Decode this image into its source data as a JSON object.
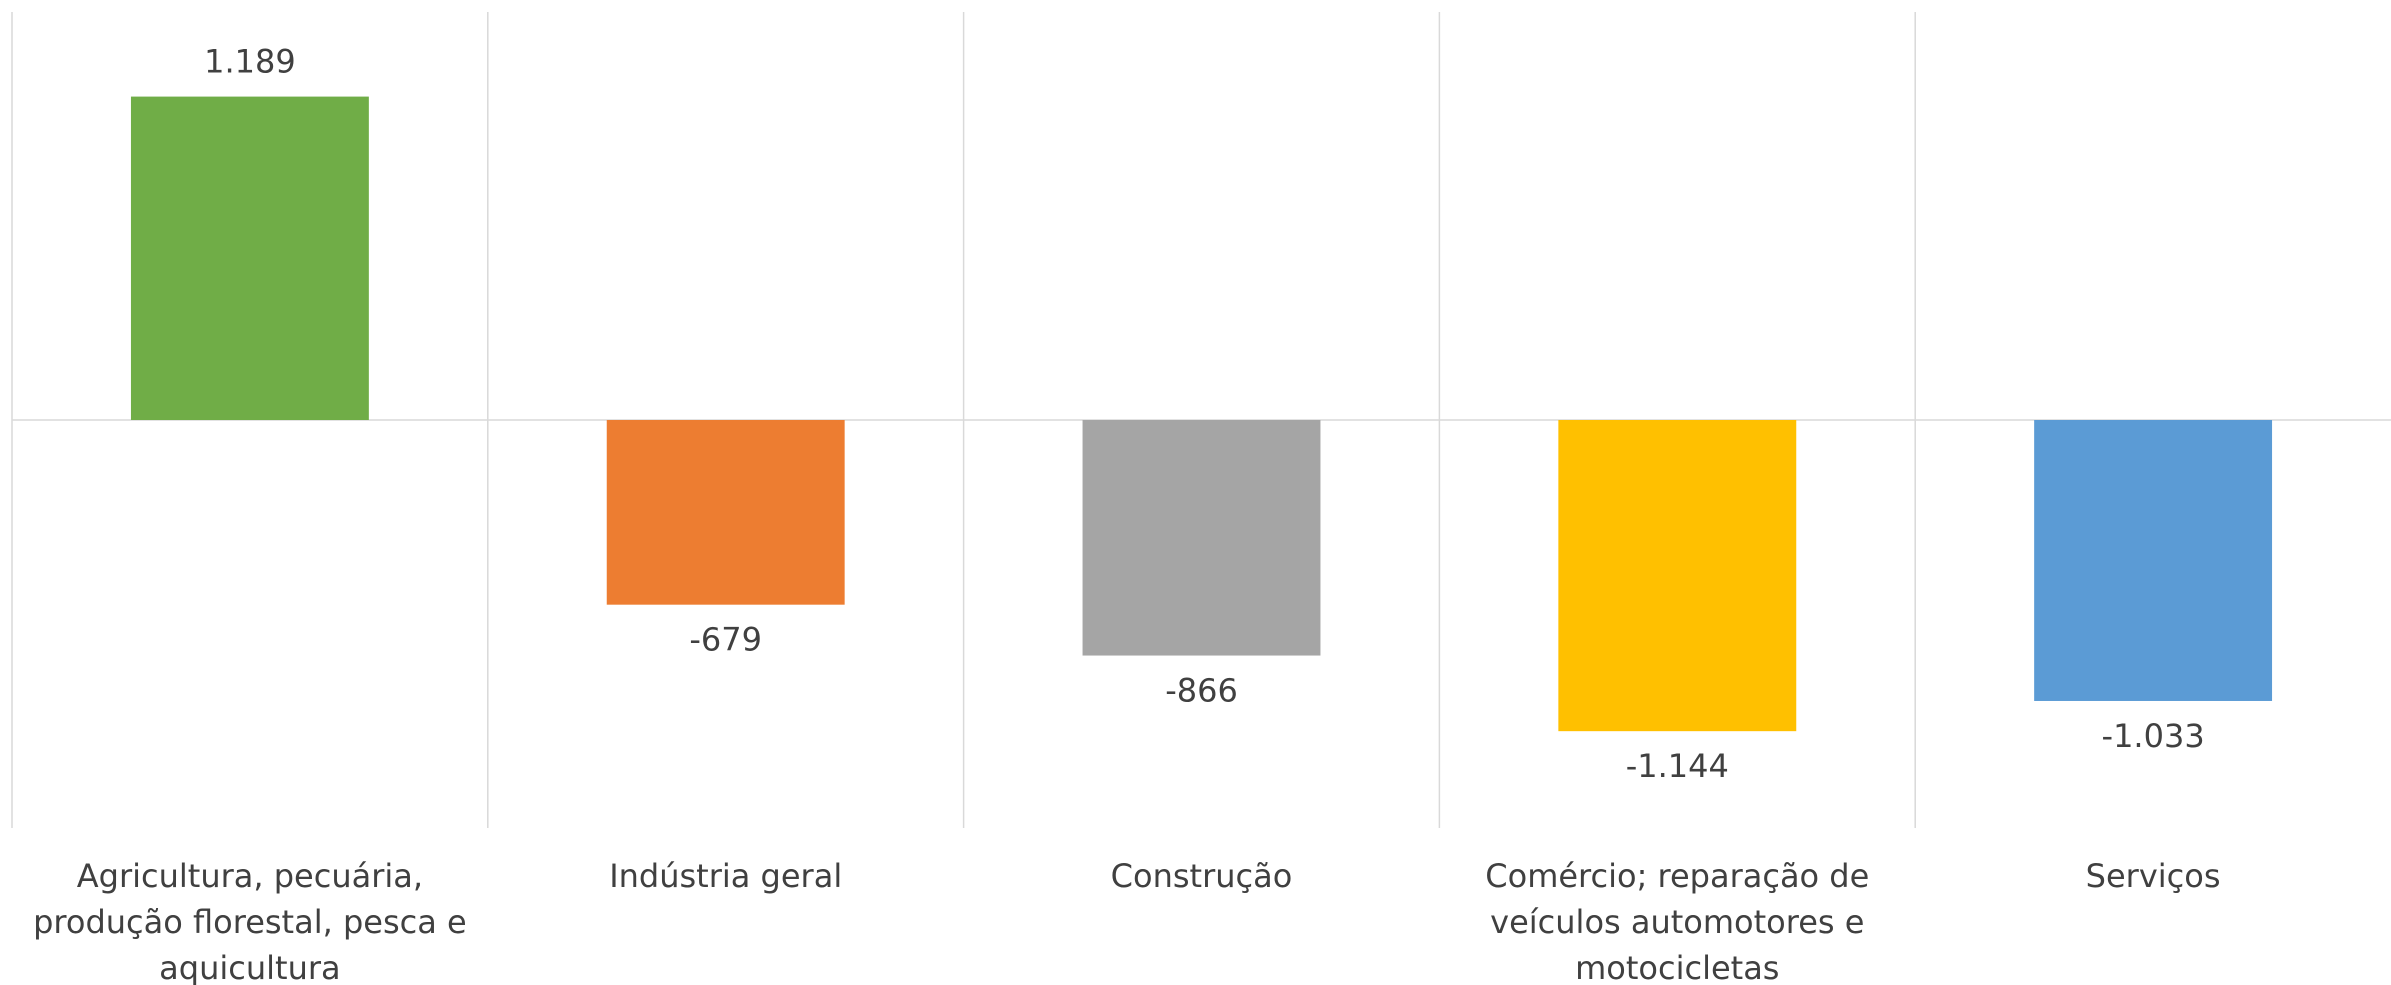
{
  "chart_data": {
    "type": "bar",
    "categories": [
      "Agricultura, pecuária, produção florestal,  pesca e aquicultura",
      "Indústria geral",
      "Construção",
      "Comércio; reparação de veículos automotores e motocicletas",
      "Serviços"
    ],
    "values": [
      1189,
      -679,
      -866,
      -1144,
      -1033
    ],
    "value_labels": [
      "1.189",
      "-679",
      "-866",
      "-1.144",
      "-1.033"
    ],
    "colors": [
      "#70ad47",
      "#ed7d31",
      "#a5a5a5",
      "#ffc000",
      "#5b9bd5"
    ],
    "ylim": [
      -1500,
      1500
    ]
  }
}
